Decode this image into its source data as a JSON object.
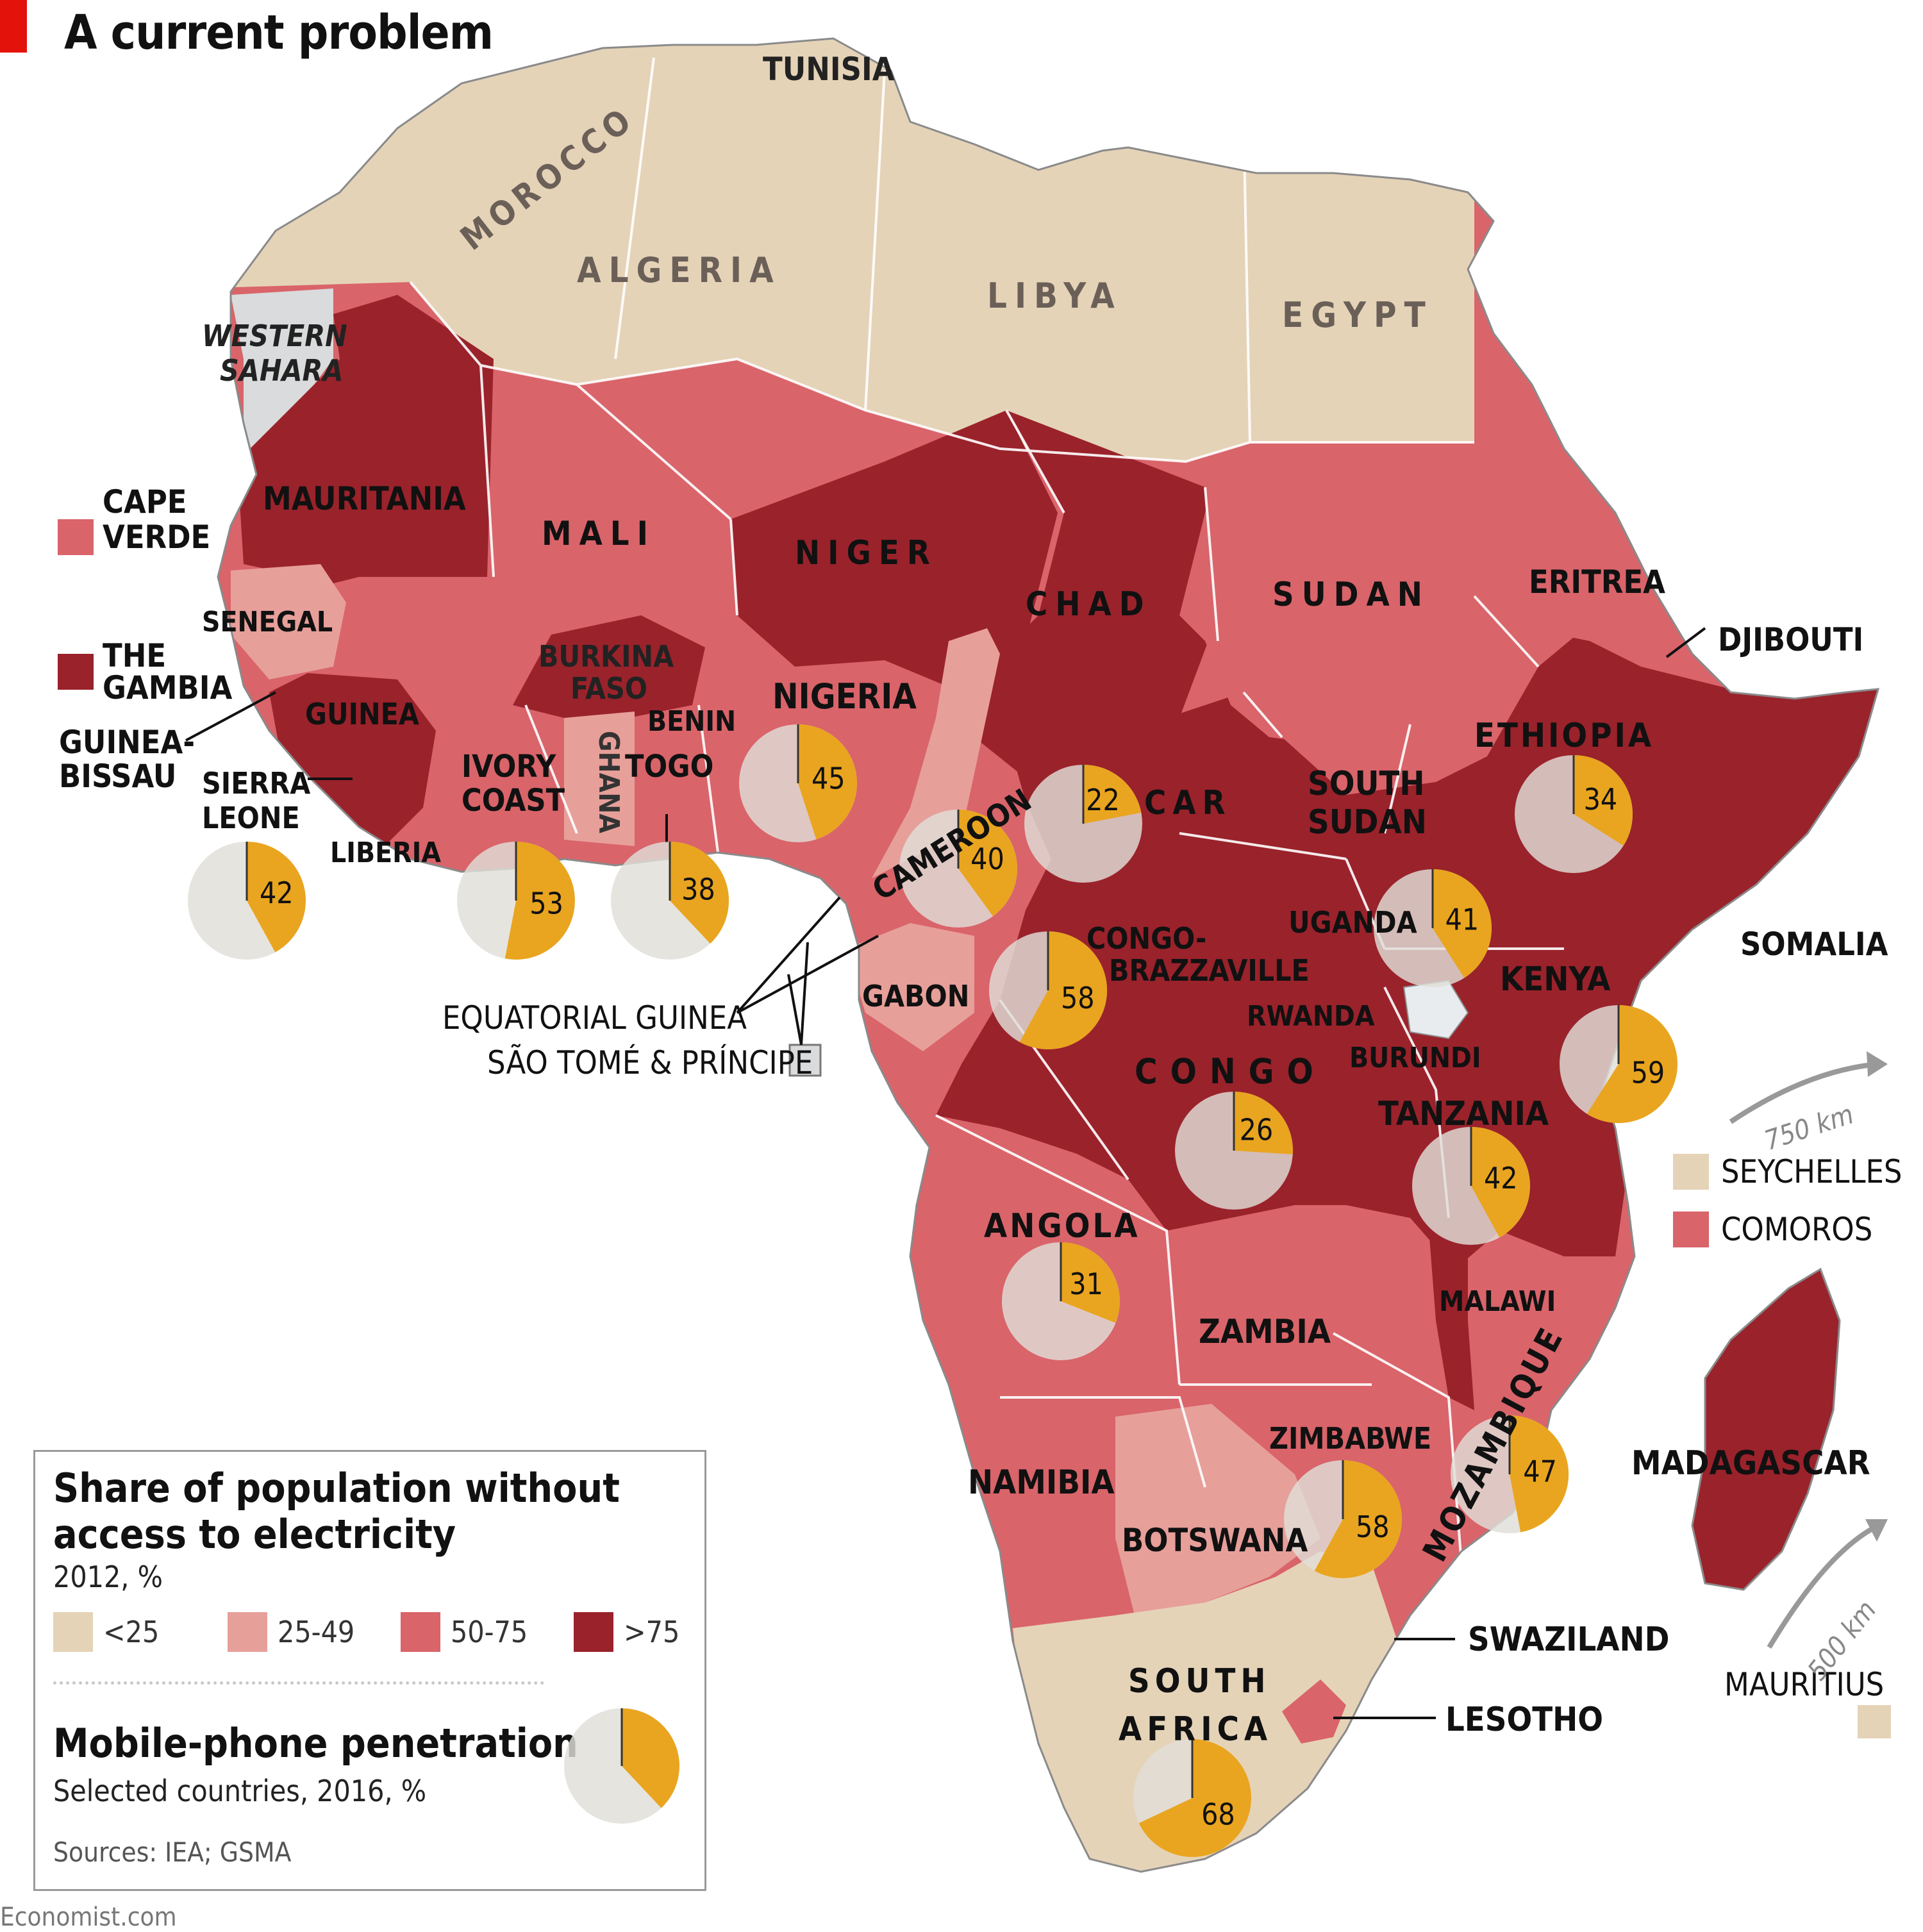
{
  "title": "A current problem",
  "colors": {
    "lt25": "#e5d3b8",
    "b25_49": "#e79f9a",
    "b50_75": "#d9646a",
    "gt75": "#9a222b",
    "phone": "#e9a51f",
    "no_phone": "#e1ded8",
    "no_data": "#d9dbdc",
    "red_tag": "#e3120b"
  },
  "legend": {
    "heading1": "Share of population without",
    "heading2": "access to electricity",
    "sub1": "2012, %",
    "bins": [
      "<25",
      "25-49",
      "50-75",
      ">75"
    ],
    "phone_heading": "Mobile-phone penetration",
    "phone_sub": "Selected countries, 2016, %",
    "sources": "Sources: IEA; GSMA",
    "example_pct": 38
  },
  "countries": {
    "morocco": {
      "name": "MOROCCO",
      "bin": "<25"
    },
    "algeria": {
      "name": "ALGERIA",
      "bin": "<25"
    },
    "tunisia": {
      "name": "TUNISIA",
      "bin": "<25"
    },
    "libya": {
      "name": "LIBYA",
      "bin": "<25"
    },
    "egypt": {
      "name": "EGYPT",
      "bin": "<25"
    },
    "western_sahara_1": "WESTERN",
    "western_sahara_2": "SAHARA",
    "mauritania": {
      "name": "MAURITANIA",
      "bin": ">75"
    },
    "mali": {
      "name": "MALI",
      "bin": "50-75"
    },
    "niger": {
      "name": "NIGER",
      "bin": ">75"
    },
    "chad": {
      "name": "CHAD",
      "bin": ">75"
    },
    "sudan": {
      "name": "SUDAN",
      "bin": "50-75"
    },
    "eritrea": {
      "name": "ERITREA",
      "bin": "50-75"
    },
    "djibouti": {
      "name": "DJIBOUTI",
      "bin": "50-75"
    },
    "ethiopia": {
      "name": "ETHIOPIA",
      "bin": ">75"
    },
    "somalia": {
      "name": "SOMALIA",
      "bin": ">75"
    },
    "senegal": {
      "name": "SENEGAL",
      "bin": "25-49"
    },
    "gambia_1": "THE",
    "gambia_2": "GAMBIA",
    "guinea_bissau_1": "GUINEA-",
    "guinea_bissau_2": "BISSAU",
    "guinea": {
      "name": "GUINEA",
      "bin": ">75"
    },
    "sierra_leone_1": "SIERRA",
    "sierra_leone_2": "LEONE",
    "liberia": {
      "name": "LIBERIA",
      "bin": ">75"
    },
    "ivory_coast_1": "IVORY",
    "ivory_coast_2": "COAST",
    "burkina_1": "BURKINA",
    "burkina_2": "FASO",
    "ghana": {
      "name": "GHANA",
      "bin": "25-49"
    },
    "togo": {
      "name": "TOGO",
      "bin": "50-75"
    },
    "benin": {
      "name": "BENIN",
      "bin": "50-75"
    },
    "nigeria": {
      "name": "NIGERIA",
      "bin": "50-75"
    },
    "cameroon": {
      "name": "CAMEROON",
      "bin": "25-49"
    },
    "car": {
      "name": "CAR",
      "bin": ">75"
    },
    "south_sudan_1": "SOUTH",
    "south_sudan_2": "SUDAN",
    "uganda": {
      "name": "UGANDA",
      "bin": ">75"
    },
    "kenya": {
      "name": "KENYA",
      "bin": ">75"
    },
    "rwanda": {
      "name": "RWANDA",
      "bin": ">75"
    },
    "burundi": {
      "name": "BURUNDI",
      "bin": ">75"
    },
    "gabon": {
      "name": "GABON",
      "bin": "25-49"
    },
    "congo_brazz_1": "CONGO-",
    "congo_brazz_2": "BRAZZAVILLE",
    "congo": {
      "name": "CONGO",
      "bin": ">75"
    },
    "tanzania": {
      "name": "TANZANIA",
      "bin": ">75"
    },
    "angola": {
      "name": "ANGOLA",
      "bin": "50-75"
    },
    "zambia": {
      "name": "ZAMBIA",
      "bin": "50-75"
    },
    "malawi": {
      "name": "MALAWI",
      "bin": ">75"
    },
    "mozambique": {
      "name": "MOZAMBIQUE",
      "bin": "50-75"
    },
    "zimbabwe": {
      "name": "ZIMBABWE",
      "bin": "50-75"
    },
    "namibia": {
      "name": "NAMIBIA",
      "bin": "50-75"
    },
    "botswana": {
      "name": "BOTSWANA",
      "bin": "25-49"
    },
    "south_africa_1": "SOUTH",
    "south_africa_2": "AFRICA",
    "swaziland": {
      "name": "SWAZILAND",
      "bin": "50-75"
    },
    "lesotho": {
      "name": "LESOTHO",
      "bin": "50-75"
    },
    "madagascar": {
      "name": "MADAGASCAR",
      "bin": ">75"
    },
    "cape_verde_1": "CAPE",
    "cape_verde_2": "VERDE",
    "equatorial_guinea": "EQUATORIAL GUINEA",
    "sao_tome": "SÃO TOMÉ & PRÍNCIPE",
    "seychelles": "SEYCHELLES",
    "comoros": "COMOROS",
    "mauritius": "MAURITIUS"
  },
  "scale": {
    "km750": "750 km",
    "km500": "500 km"
  },
  "chart_data": {
    "type": "map",
    "title": "A current problem",
    "metric": "Share of population without access to electricity, 2012, %",
    "bins": [
      "<25",
      "25-49",
      "50-75",
      ">75"
    ],
    "pie_metric": "Mobile-phone penetration, selected countries, 2016, %",
    "mobile_penetration": [
      {
        "country": "Sierra Leone",
        "value": 42
      },
      {
        "country": "Ivory Coast",
        "value": 53
      },
      {
        "country": "Togo",
        "value": 38
      },
      {
        "country": "Nigeria",
        "value": 45
      },
      {
        "country": "Cameroon",
        "value": 40
      },
      {
        "country": "CAR",
        "value": 22
      },
      {
        "country": "Congo-Brazzaville",
        "value": 58
      },
      {
        "country": "Ethiopia",
        "value": 34
      },
      {
        "country": "Uganda",
        "value": 41
      },
      {
        "country": "Kenya",
        "value": 59
      },
      {
        "country": "Congo",
        "value": 26
      },
      {
        "country": "Tanzania",
        "value": 42
      },
      {
        "country": "Angola",
        "value": 31
      },
      {
        "country": "Mozambique",
        "value": 47
      },
      {
        "country": "Zimbabwe",
        "value": 58
      },
      {
        "country": "South Africa",
        "value": 68
      }
    ]
  },
  "footer": "Economist.com"
}
